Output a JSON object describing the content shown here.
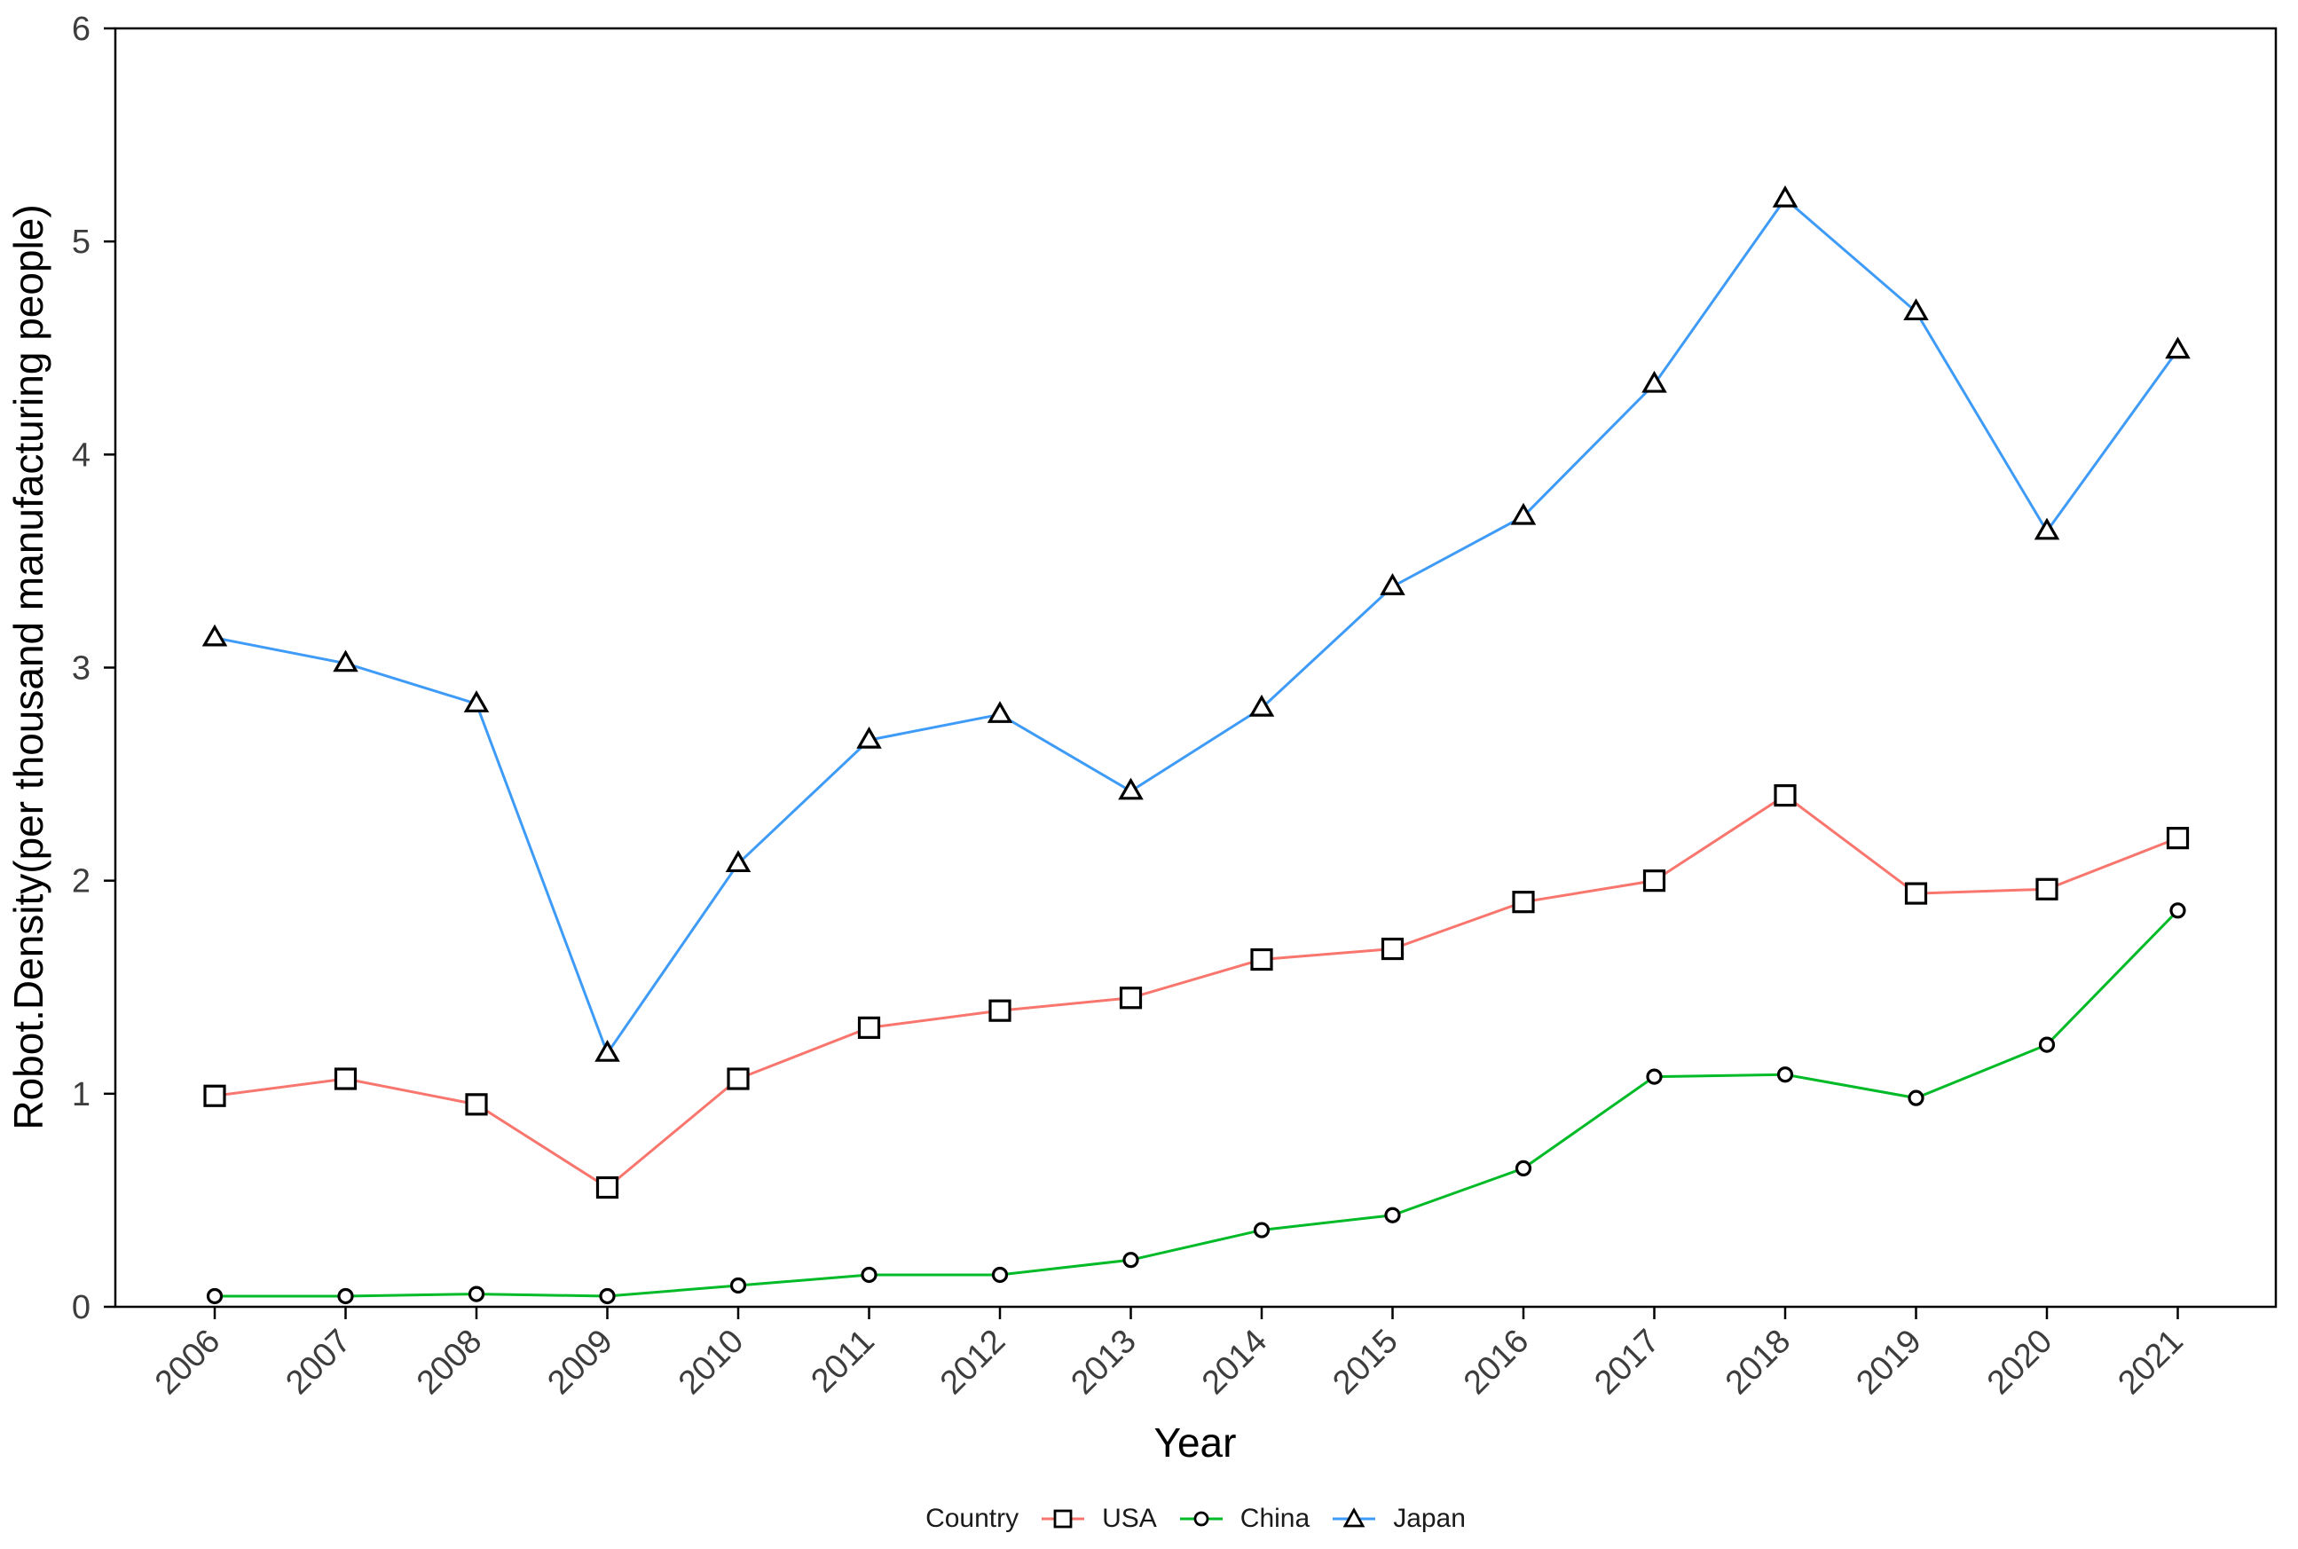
{
  "chart_data": {
    "type": "line",
    "title": "",
    "xlabel": "Year",
    "ylabel": "Robot.Density(per thousand manufacturing people)",
    "legend_title": "Country",
    "legend_position": "bottom",
    "grid": false,
    "panel_background": "#ffffff",
    "border_color": "#000000",
    "tick_label_color": "#3d3d3d",
    "x": [
      2006,
      2007,
      2008,
      2009,
      2010,
      2011,
      2012,
      2013,
      2014,
      2015,
      2016,
      2017,
      2018,
      2019,
      2020,
      2021
    ],
    "ylim": [
      0,
      6
    ],
    "yticks": [
      0,
      1,
      2,
      3,
      4,
      5,
      6
    ],
    "series": [
      {
        "name": "USA",
        "color": "#F8766D",
        "marker": "square",
        "values": [
          0.99,
          1.07,
          0.95,
          0.56,
          1.07,
          1.31,
          1.39,
          1.45,
          1.63,
          1.68,
          1.9,
          2.0,
          2.4,
          1.94,
          1.96,
          2.2
        ]
      },
      {
        "name": "China",
        "color": "#00BB27",
        "marker": "circle",
        "values": [
          0.05,
          0.05,
          0.06,
          0.05,
          0.1,
          0.15,
          0.15,
          0.22,
          0.36,
          0.43,
          0.65,
          1.08,
          1.09,
          0.98,
          1.23,
          1.86
        ]
      },
      {
        "name": "Japan",
        "color": "#3E9BF7",
        "marker": "triangle",
        "values": [
          3.14,
          3.02,
          2.83,
          1.19,
          2.08,
          2.66,
          2.78,
          2.42,
          2.81,
          3.38,
          3.71,
          4.33,
          5.2,
          4.67,
          3.64,
          4.49
        ]
      }
    ]
  }
}
